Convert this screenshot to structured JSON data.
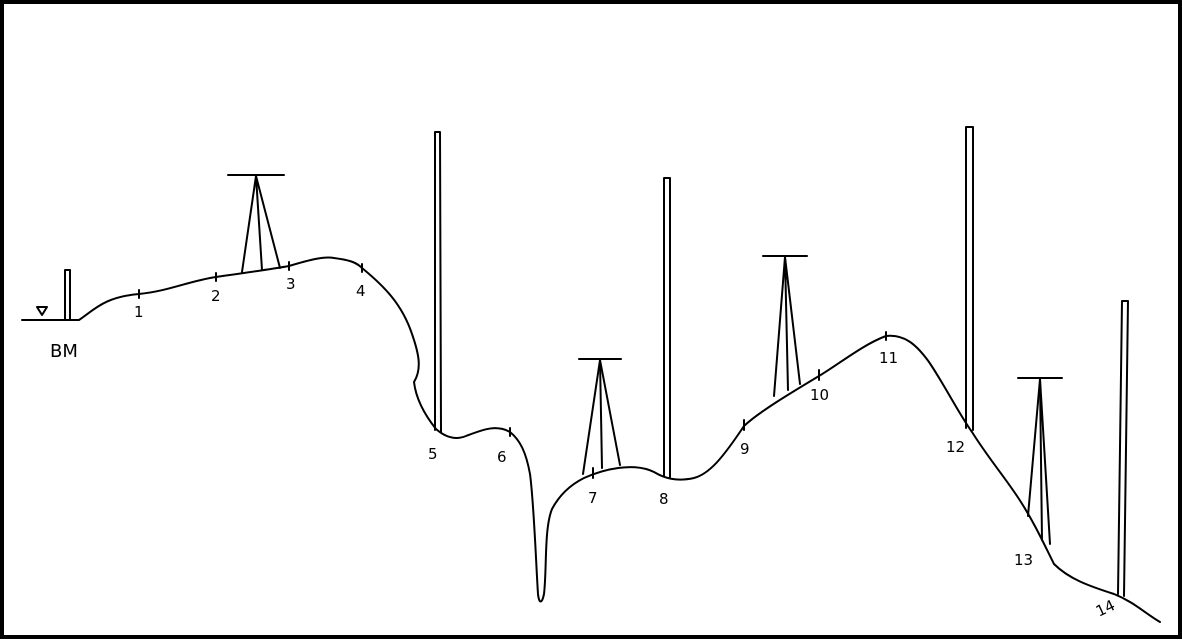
{
  "diagram": {
    "benchmark_label": "BM",
    "stations": [
      {
        "id": "s1",
        "label": "1"
      },
      {
        "id": "s2",
        "label": "2"
      },
      {
        "id": "s3",
        "label": "3"
      },
      {
        "id": "s4",
        "label": "4"
      },
      {
        "id": "s5",
        "label": "5"
      },
      {
        "id": "s6",
        "label": "6"
      },
      {
        "id": "s7",
        "label": "7"
      },
      {
        "id": "s8",
        "label": "8"
      },
      {
        "id": "s9",
        "label": "9"
      },
      {
        "id": "s10",
        "label": "10"
      },
      {
        "id": "s11",
        "label": "11"
      },
      {
        "id": "s12",
        "label": "12"
      },
      {
        "id": "s13",
        "label": "13"
      },
      {
        "id": "s14",
        "label": "14"
      }
    ],
    "colors": {
      "ink": "#000000",
      "background": "#ffffff"
    }
  }
}
